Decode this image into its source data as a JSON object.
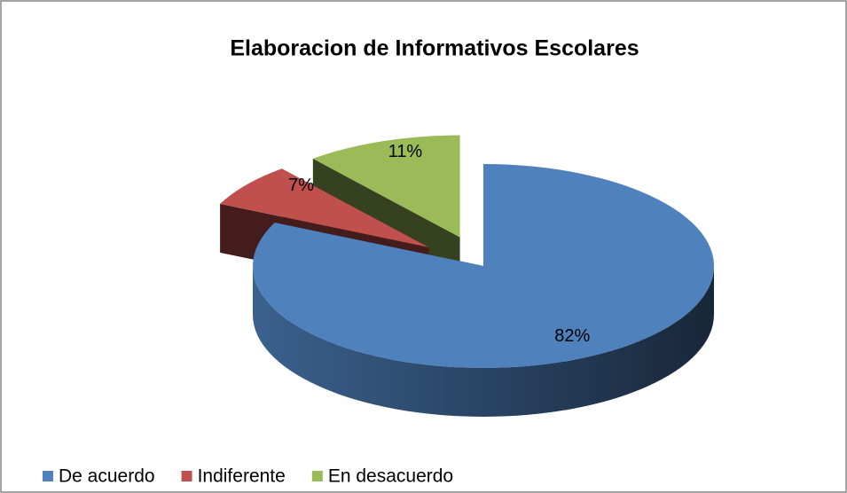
{
  "chart_data": {
    "type": "pie",
    "title": "Elaboracion de Informativos Escolares",
    "categories": [
      "De acuerdo",
      "Indiferente",
      "En desacuerdo"
    ],
    "values": [
      82,
      7,
      11
    ],
    "value_labels": [
      "82%",
      "7%",
      "11%"
    ],
    "colors": [
      "#4f81bd",
      "#c0504d",
      "#9bbb59"
    ],
    "legend": "bottom"
  }
}
